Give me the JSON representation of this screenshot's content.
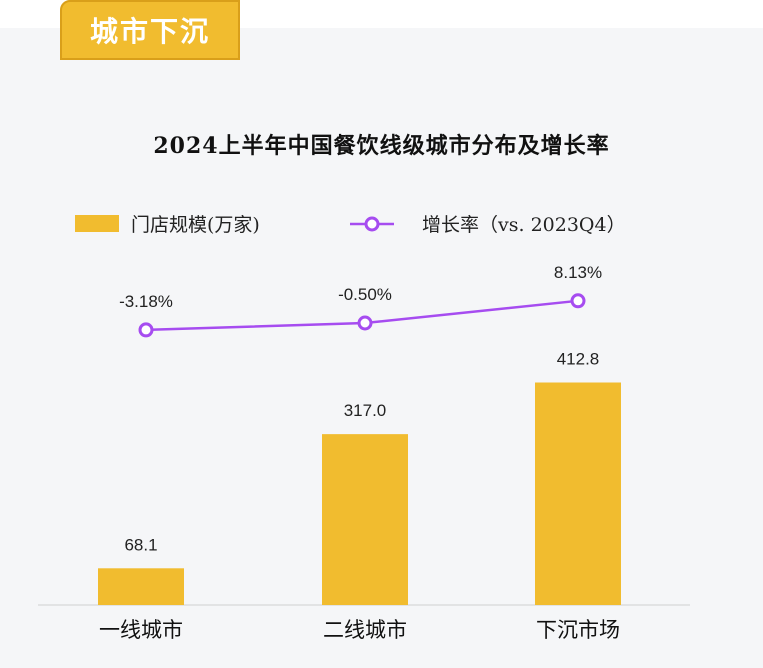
{
  "badge": {
    "label": "城市下沉"
  },
  "colors": {
    "bar": "#f1bc2f",
    "line": "#a64cf0",
    "badge_bg": "#f1bc2f",
    "panel_bg": "#f5f6f8"
  },
  "chart_data": {
    "type": "bar",
    "title": "2024上半年中国餐饮线级城市分布及增长率",
    "categories": [
      "一线城市",
      "二线城市",
      "下沉市场"
    ],
    "series": [
      {
        "name": "门店规模(万家)",
        "type": "bar",
        "values": [
          68.1,
          317.0,
          412.8
        ],
        "labels": [
          "68.1",
          "317.0",
          "412.8"
        ]
      },
      {
        "name": "增长率（vs. 2023Q4）",
        "type": "line",
        "values": [
          -3.18,
          -0.5,
          8.13
        ],
        "labels": [
          "-3.18%",
          "-0.50%",
          "8.13%"
        ]
      }
    ],
    "legend_position": "top",
    "grid": false
  }
}
